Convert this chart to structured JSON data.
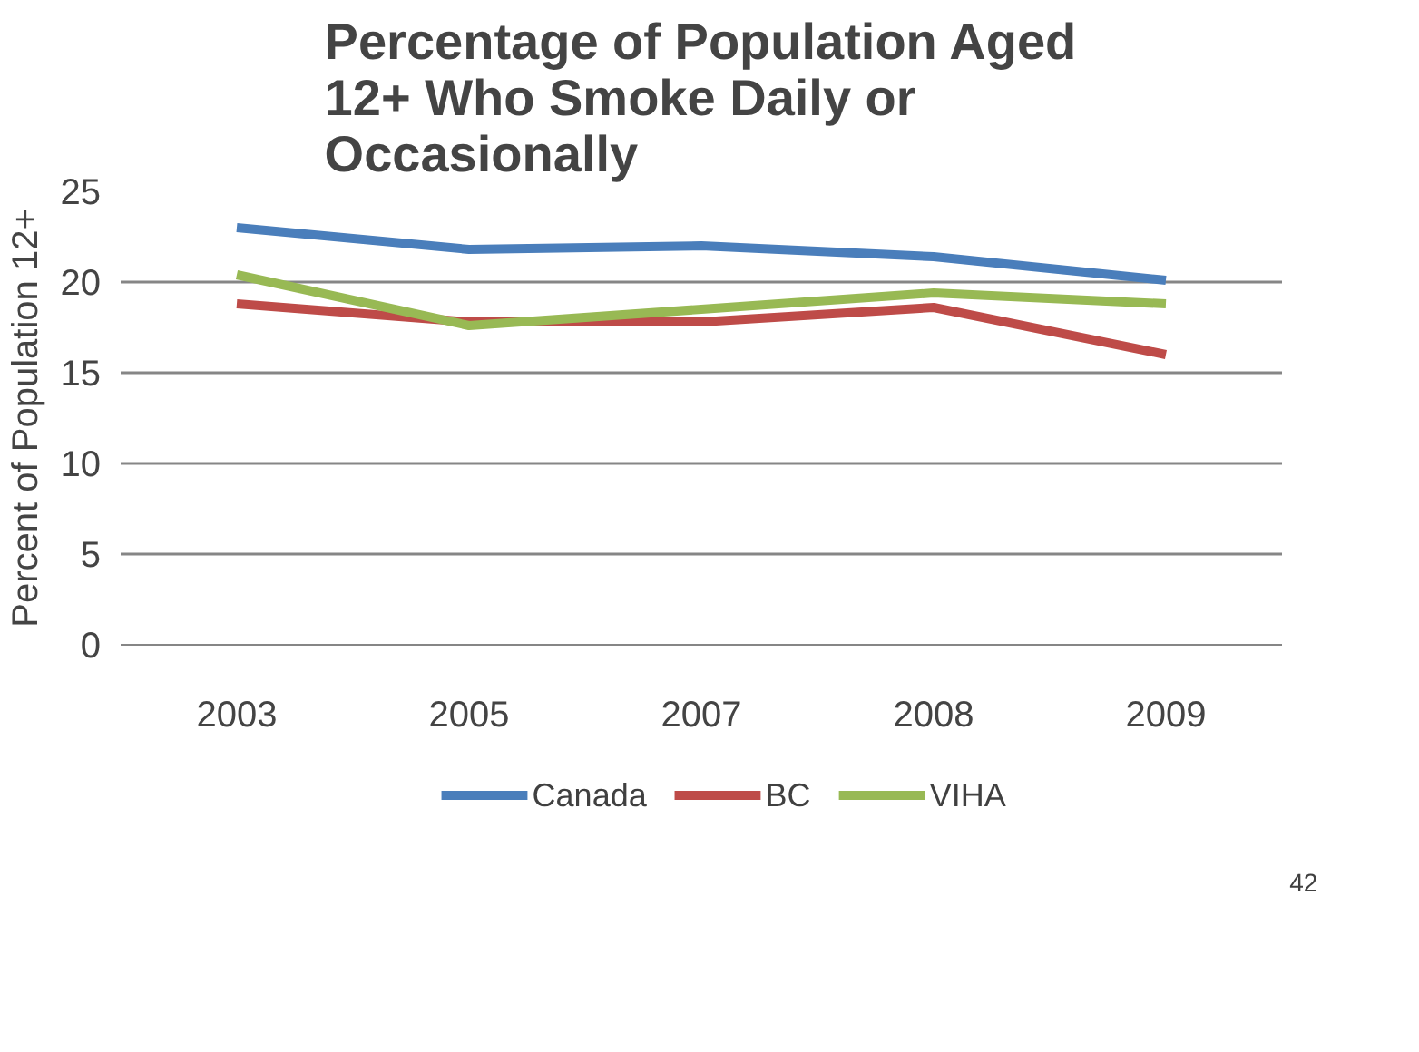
{
  "chart_data": {
    "type": "line",
    "title": "Percentage of Population Aged\n12+ Who Smoke Daily or\nOccasionally",
    "ylabel": "Percent of Population 12+",
    "categories": [
      "2003",
      "2005",
      "2007",
      "2008",
      "2009"
    ],
    "series": [
      {
        "name": "Canada",
        "color": "#4a7ebb",
        "values": [
          23.0,
          21.8,
          22.0,
          21.4,
          20.1
        ]
      },
      {
        "name": "BC",
        "color": "#be4b48",
        "values": [
          18.8,
          17.8,
          17.8,
          18.6,
          16.0
        ]
      },
      {
        "name": "VIHA",
        "color": "#98b954",
        "values": [
          20.4,
          17.6,
          18.5,
          19.4,
          18.8
        ]
      }
    ],
    "ylim": [
      0,
      25
    ],
    "yticks": [
      0,
      5,
      10,
      15,
      20,
      25
    ],
    "grid": "y",
    "legend": "bottom",
    "marker": "none",
    "line_style": "solid",
    "annotations": [
      "42"
    ]
  }
}
